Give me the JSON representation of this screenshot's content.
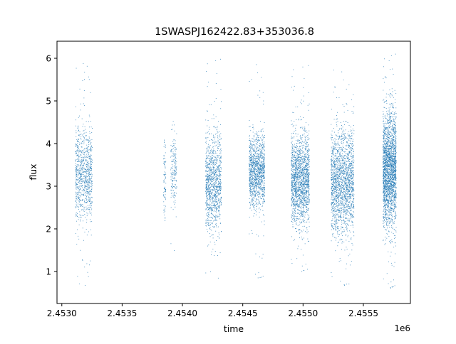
{
  "chart_data": {
    "type": "scatter",
    "title": "1SWASPJ162422.83+353036.8",
    "xlabel": "time",
    "ylabel": "flux",
    "x_offset_label": "1e6",
    "xlim": [
      2.45296,
      2.45589
    ],
    "ylim": [
      0.25,
      6.4
    ],
    "xticks": [
      2.453,
      2.4535,
      2.454,
      2.4545,
      2.455,
      2.4555
    ],
    "xtick_labels": [
      "2.4530",
      "2.4535",
      "2.4540",
      "2.4545",
      "2.4550",
      "2.4555"
    ],
    "yticks": [
      1,
      2,
      3,
      4,
      5,
      6
    ],
    "ytick_labels": [
      "1",
      "2",
      "3",
      "4",
      "5",
      "6"
    ],
    "grid": false,
    "marker_color": "#1f77b4",
    "series": [
      {
        "segments": [
          {
            "x_start": 2.45311,
            "x_end": 2.45325,
            "y_center": 3.3,
            "y_spread": 0.55,
            "y_min": 0.6,
            "y_max": 6.05,
            "density": 900
          },
          {
            "x_start": 2.45384,
            "x_end": 2.45386,
            "y_center": 3.2,
            "y_spread": 0.5,
            "y_min": 2.2,
            "y_max": 5.5,
            "density": 80
          },
          {
            "x_start": 2.4539,
            "x_end": 2.45395,
            "y_center": 3.35,
            "y_spread": 0.4,
            "y_min": 1.45,
            "y_max": 5.6,
            "density": 180
          },
          {
            "x_start": 2.45419,
            "x_end": 2.45432,
            "y_center": 3.1,
            "y_spread": 0.55,
            "y_min": 0.6,
            "y_max": 6.0,
            "density": 1100
          },
          {
            "x_start": 2.45455,
            "x_end": 2.45468,
            "y_center": 3.35,
            "y_spread": 0.42,
            "y_min": 0.78,
            "y_max": 6.02,
            "density": 1200
          },
          {
            "x_start": 2.4549,
            "x_end": 2.45505,
            "y_center": 3.15,
            "y_spread": 0.52,
            "y_min": 0.95,
            "y_max": 5.85,
            "density": 1700
          },
          {
            "x_start": 2.45523,
            "x_end": 2.45542,
            "y_center": 3.1,
            "y_spread": 0.6,
            "y_min": 0.62,
            "y_max": 5.85,
            "density": 1900
          },
          {
            "x_start": 2.45566,
            "x_end": 2.45577,
            "y_center": 3.4,
            "y_spread": 0.65,
            "y_min": 0.55,
            "y_max": 6.12,
            "density": 2300
          }
        ]
      }
    ]
  }
}
